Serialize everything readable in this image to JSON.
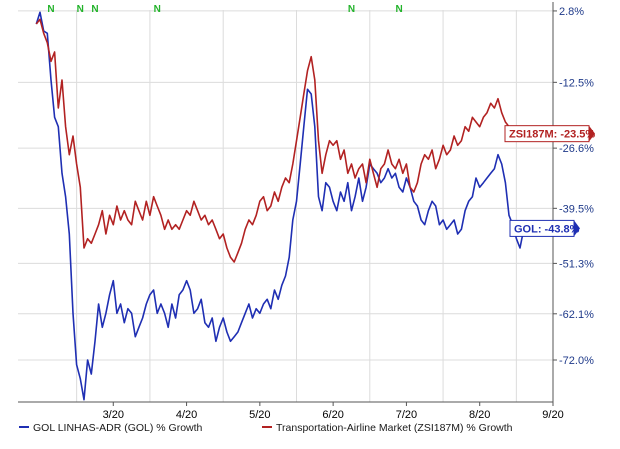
{
  "chart_data": {
    "type": "line",
    "x_tick_labels": [
      "3/20",
      "4/20",
      "5/20",
      "6/20",
      "7/20",
      "8/20",
      "9/20"
    ],
    "y_tick_labels": [
      "2.8%",
      "-12.5%",
      "-26.6%",
      "-39.5%",
      "-51.3%",
      "-62.1%",
      "-72.0%"
    ],
    "ylim": [
      -81,
      3
    ],
    "grid": true,
    "legend_position": "bottom",
    "event_flags": [
      {
        "label": "N",
        "x": 1.15
      },
      {
        "label": "N",
        "x": 1.55
      },
      {
        "label": "N",
        "x": 1.75
      },
      {
        "label": "N",
        "x": 2.6
      },
      {
        "label": "N",
        "x": 5.25
      },
      {
        "label": "N",
        "x": 5.9
      }
    ],
    "series": [
      {
        "name": "GOL LINHAS-ADR (GOL) % Growth",
        "color": "#1f2fb3",
        "end_label": "GOL: -43.8%",
        "points": [
          [
            0.95,
            0
          ],
          [
            1.0,
            2.5
          ],
          [
            1.05,
            -1.5
          ],
          [
            1.1,
            -2.0
          ],
          [
            1.15,
            -12.0
          ],
          [
            1.2,
            -20.0
          ],
          [
            1.25,
            -22.0
          ],
          [
            1.3,
            -32.0
          ],
          [
            1.35,
            -37.0
          ],
          [
            1.4,
            -45.0
          ],
          [
            1.45,
            -62.0
          ],
          [
            1.5,
            -73.0
          ],
          [
            1.55,
            -76.0
          ],
          [
            1.6,
            -80.5
          ],
          [
            1.65,
            -72.0
          ],
          [
            1.7,
            -75.0
          ],
          [
            1.75,
            -68.0
          ],
          [
            1.8,
            -60.0
          ],
          [
            1.85,
            -65.0
          ],
          [
            1.9,
            -62.0
          ],
          [
            1.95,
            -58.0
          ],
          [
            2.0,
            -55.0
          ],
          [
            2.05,
            -62.0
          ],
          [
            2.1,
            -60.0
          ],
          [
            2.15,
            -64.0
          ],
          [
            2.2,
            -61.0
          ],
          [
            2.25,
            -62.0
          ],
          [
            2.3,
            -67.0
          ],
          [
            2.35,
            -65.0
          ],
          [
            2.4,
            -63.0
          ],
          [
            2.45,
            -60.0
          ],
          [
            2.5,
            -58.0
          ],
          [
            2.55,
            -57.0
          ],
          [
            2.6,
            -62.0
          ],
          [
            2.65,
            -60.0
          ],
          [
            2.7,
            -62.0
          ],
          [
            2.75,
            -65.0
          ],
          [
            2.8,
            -60.0
          ],
          [
            2.85,
            -63.0
          ],
          [
            2.9,
            -58.0
          ],
          [
            2.95,
            -57.0
          ],
          [
            3.0,
            -55.0
          ],
          [
            3.05,
            -57.0
          ],
          [
            3.1,
            -62.0
          ],
          [
            3.15,
            -61.0
          ],
          [
            3.2,
            -59.0
          ],
          [
            3.25,
            -64.0
          ],
          [
            3.3,
            -65.0
          ],
          [
            3.35,
            -63.0
          ],
          [
            3.4,
            -68.0
          ],
          [
            3.45,
            -65.0
          ],
          [
            3.5,
            -63.0
          ],
          [
            3.55,
            -66.0
          ],
          [
            3.6,
            -68.0
          ],
          [
            3.65,
            -67.0
          ],
          [
            3.7,
            -66.0
          ],
          [
            3.75,
            -64.0
          ],
          [
            3.8,
            -62.0
          ],
          [
            3.85,
            -60.0
          ],
          [
            3.9,
            -63.0
          ],
          [
            3.95,
            -61.0
          ],
          [
            4.0,
            -62.0
          ],
          [
            4.05,
            -60.0
          ],
          [
            4.1,
            -59.0
          ],
          [
            4.15,
            -61.0
          ],
          [
            4.2,
            -57.0
          ],
          [
            4.25,
            -59.0
          ],
          [
            4.3,
            -56.0
          ],
          [
            4.35,
            -54.0
          ],
          [
            4.4,
            -50.0
          ],
          [
            4.45,
            -42.0
          ],
          [
            4.5,
            -38.0
          ],
          [
            4.55,
            -30.0
          ],
          [
            4.6,
            -22.0
          ],
          [
            4.65,
            -14.0
          ],
          [
            4.7,
            -15.0
          ],
          [
            4.75,
            -22.0
          ],
          [
            4.8,
            -37.0
          ],
          [
            4.85,
            -40.0
          ],
          [
            4.9,
            -34.0
          ],
          [
            4.95,
            -35.0
          ],
          [
            5.0,
            -38.0
          ],
          [
            5.05,
            -40.0
          ],
          [
            5.1,
            -36.0
          ],
          [
            5.15,
            -38.0
          ],
          [
            5.2,
            -34.0
          ],
          [
            5.25,
            -40.0
          ],
          [
            5.3,
            -37.0
          ],
          [
            5.35,
            -33.0
          ],
          [
            5.4,
            -38.0
          ],
          [
            5.45,
            -35.0
          ],
          [
            5.5,
            -30.0
          ],
          [
            5.55,
            -31.0
          ],
          [
            5.6,
            -32.0
          ],
          [
            5.65,
            -34.0
          ],
          [
            5.7,
            -33.0
          ],
          [
            5.75,
            -31.0
          ],
          [
            5.8,
            -33.0
          ],
          [
            5.85,
            -32.0
          ],
          [
            5.9,
            -35.0
          ],
          [
            5.95,
            -36.0
          ],
          [
            6.0,
            -33.0
          ],
          [
            6.05,
            -35.0
          ],
          [
            6.1,
            -38.0
          ],
          [
            6.15,
            -39.0
          ],
          [
            6.2,
            -42.0
          ],
          [
            6.25,
            -43.0
          ],
          [
            6.3,
            -40.0
          ],
          [
            6.35,
            -38.0
          ],
          [
            6.4,
            -39.0
          ],
          [
            6.45,
            -43.0
          ],
          [
            6.5,
            -42.0
          ],
          [
            6.55,
            -44.0
          ],
          [
            6.6,
            -43.0
          ],
          [
            6.65,
            -42.0
          ],
          [
            6.7,
            -45.0
          ],
          [
            6.75,
            -44.0
          ],
          [
            6.8,
            -40.0
          ],
          [
            6.85,
            -38.0
          ],
          [
            6.9,
            -37.0
          ],
          [
            6.95,
            -33.0
          ],
          [
            7.0,
            -35.0
          ],
          [
            7.05,
            -34.0
          ],
          [
            7.1,
            -33.0
          ],
          [
            7.15,
            -32.0
          ],
          [
            7.2,
            -31.0
          ],
          [
            7.25,
            -28.0
          ],
          [
            7.3,
            -30.0
          ],
          [
            7.35,
            -34.0
          ],
          [
            7.4,
            -41.0
          ],
          [
            7.45,
            -43.0
          ],
          [
            7.5,
            -46.0
          ],
          [
            7.55,
            -48.0
          ],
          [
            7.6,
            -44.0
          ],
          [
            7.65,
            -45.0
          ],
          [
            7.7,
            -43.8
          ]
        ]
      },
      {
        "name": "Transportation-Airline Market (ZSI187M) % Growth",
        "color": "#b22222",
        "end_label": "ZSI187M: -23.5%",
        "points": [
          [
            0.95,
            0
          ],
          [
            1.0,
            1.0
          ],
          [
            1.05,
            -2.0
          ],
          [
            1.1,
            -4.0
          ],
          [
            1.15,
            -8.0
          ],
          [
            1.2,
            -6.0
          ],
          [
            1.25,
            -18.0
          ],
          [
            1.3,
            -12.0
          ],
          [
            1.35,
            -22.0
          ],
          [
            1.4,
            -28.0
          ],
          [
            1.45,
            -24.0
          ],
          [
            1.5,
            -30.0
          ],
          [
            1.55,
            -35.0
          ],
          [
            1.6,
            -48.0
          ],
          [
            1.65,
            -46.0
          ],
          [
            1.7,
            -47.0
          ],
          [
            1.75,
            -45.0
          ],
          [
            1.8,
            -43.0
          ],
          [
            1.85,
            -40.0
          ],
          [
            1.9,
            -45.0
          ],
          [
            1.95,
            -41.0
          ],
          [
            2.0,
            -43.0
          ],
          [
            2.05,
            -39.0
          ],
          [
            2.1,
            -42.0
          ],
          [
            2.15,
            -40.0
          ],
          [
            2.2,
            -42.0
          ],
          [
            2.25,
            -43.0
          ],
          [
            2.3,
            -38.0
          ],
          [
            2.35,
            -40.0
          ],
          [
            2.4,
            -42.0
          ],
          [
            2.45,
            -38.0
          ],
          [
            2.5,
            -41.0
          ],
          [
            2.55,
            -37.0
          ],
          [
            2.6,
            -39.0
          ],
          [
            2.65,
            -41.0
          ],
          [
            2.7,
            -44.0
          ],
          [
            2.75,
            -42.0
          ],
          [
            2.8,
            -44.0
          ],
          [
            2.85,
            -43.0
          ],
          [
            2.9,
            -44.0
          ],
          [
            2.95,
            -42.0
          ],
          [
            3.0,
            -40.0
          ],
          [
            3.05,
            -41.0
          ],
          [
            3.1,
            -38.0
          ],
          [
            3.15,
            -40.0
          ],
          [
            3.2,
            -42.0
          ],
          [
            3.25,
            -41.0
          ],
          [
            3.3,
            -43.0
          ],
          [
            3.35,
            -42.0
          ],
          [
            3.4,
            -44.0
          ],
          [
            3.45,
            -46.0
          ],
          [
            3.5,
            -45.0
          ],
          [
            3.55,
            -48.0
          ],
          [
            3.6,
            -50.0
          ],
          [
            3.65,
            -51.0
          ],
          [
            3.7,
            -49.0
          ],
          [
            3.75,
            -47.0
          ],
          [
            3.8,
            -44.0
          ],
          [
            3.85,
            -42.0
          ],
          [
            3.9,
            -43.0
          ],
          [
            3.95,
            -41.0
          ],
          [
            4.0,
            -38.0
          ],
          [
            4.05,
            -37.0
          ],
          [
            4.1,
            -40.0
          ],
          [
            4.15,
            -39.0
          ],
          [
            4.2,
            -36.0
          ],
          [
            4.25,
            -38.0
          ],
          [
            4.3,
            -35.0
          ],
          [
            4.35,
            -33.0
          ],
          [
            4.4,
            -34.0
          ],
          [
            4.45,
            -30.0
          ],
          [
            4.5,
            -25.0
          ],
          [
            4.55,
            -20.0
          ],
          [
            4.6,
            -15.0
          ],
          [
            4.65,
            -10.0
          ],
          [
            4.7,
            -7.0
          ],
          [
            4.75,
            -12.0
          ],
          [
            4.8,
            -25.0
          ],
          [
            4.85,
            -32.0
          ],
          [
            4.9,
            -28.0
          ],
          [
            4.95,
            -25.0
          ],
          [
            5.0,
            -26.0
          ],
          [
            5.05,
            -25.0
          ],
          [
            5.1,
            -29.0
          ],
          [
            5.15,
            -27.0
          ],
          [
            5.2,
            -32.0
          ],
          [
            5.25,
            -30.0
          ],
          [
            5.3,
            -33.0
          ],
          [
            5.35,
            -31.0
          ],
          [
            5.4,
            -30.0
          ],
          [
            5.45,
            -34.0
          ],
          [
            5.5,
            -29.0
          ],
          [
            5.55,
            -32.0
          ],
          [
            5.6,
            -35.0
          ],
          [
            5.65,
            -31.0
          ],
          [
            5.7,
            -30.0
          ],
          [
            5.75,
            -27.0
          ],
          [
            5.8,
            -30.0
          ],
          [
            5.85,
            -31.0
          ],
          [
            5.9,
            -29.0
          ],
          [
            5.95,
            -32.0
          ],
          [
            6.0,
            -30.0
          ],
          [
            6.05,
            -35.0
          ],
          [
            6.1,
            -36.0
          ],
          [
            6.15,
            -34.0
          ],
          [
            6.2,
            -30.0
          ],
          [
            6.25,
            -28.0
          ],
          [
            6.3,
            -29.0
          ],
          [
            6.35,
            -27.0
          ],
          [
            6.4,
            -31.0
          ],
          [
            6.45,
            -29.0
          ],
          [
            6.5,
            -26.0
          ],
          [
            6.55,
            -28.0
          ],
          [
            6.6,
            -27.0
          ],
          [
            6.65,
            -24.0
          ],
          [
            6.7,
            -26.0
          ],
          [
            6.75,
            -25.0
          ],
          [
            6.8,
            -22.0
          ],
          [
            6.85,
            -23.0
          ],
          [
            6.9,
            -20.0
          ],
          [
            6.95,
            -21.0
          ],
          [
            7.0,
            -22.0
          ],
          [
            7.05,
            -20.0
          ],
          [
            7.1,
            -19.0
          ],
          [
            7.15,
            -17.0
          ],
          [
            7.2,
            -18.0
          ],
          [
            7.25,
            -16.0
          ],
          [
            7.3,
            -19.0
          ],
          [
            7.35,
            -21.0
          ],
          [
            7.4,
            -22.0
          ],
          [
            7.45,
            -23.0
          ],
          [
            7.5,
            -24.0
          ],
          [
            7.55,
            -25.0
          ],
          [
            7.6,
            -22.0
          ],
          [
            7.65,
            -24.0
          ],
          [
            7.7,
            -23.5
          ]
        ]
      }
    ]
  }
}
